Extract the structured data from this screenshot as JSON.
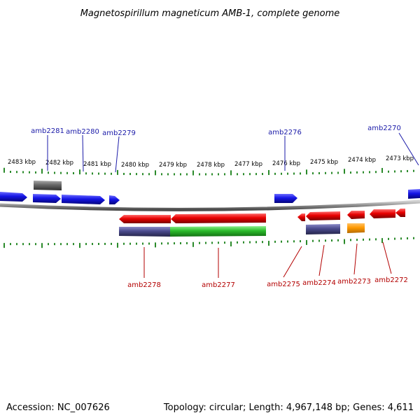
{
  "title": "Magnetospirillum magneticum AMB-1, complete genome",
  "footer": {
    "accession": "Accession: NC_007626",
    "topology": "Topology: circular; Length: 4,967,148 bp; Genes: 4,611"
  },
  "colors": {
    "forward_gene": "#1515e6",
    "reverse_gene": "#e80000",
    "backbone": "#8a8a8a",
    "tick": "#2a8a2a",
    "label_top": "#1a1aa8",
    "label_bottom": "#b30000",
    "protein_purple": "#4a4a8c",
    "protein_green": "#2bbb2b",
    "protein_orange": "#ff9900",
    "protein_gray": "#666666"
  },
  "scale_labels": [
    "2483 kbp",
    "2482 kbp",
    "2481 kbp",
    "2480 kbp",
    "2479 kbp",
    "2478 kbp",
    "2477 kbp",
    "2476 kbp",
    "2475 kbp",
    "2474 kbp",
    "2473 kbp"
  ],
  "genes_top": [
    "amb2281",
    "amb2280",
    "amb2279",
    "amb2276",
    "amb2270"
  ],
  "genes_bottom": [
    "amb2278",
    "amb2277",
    "amb2275",
    "amb2274",
    "amb2273",
    "amb2272"
  ]
}
